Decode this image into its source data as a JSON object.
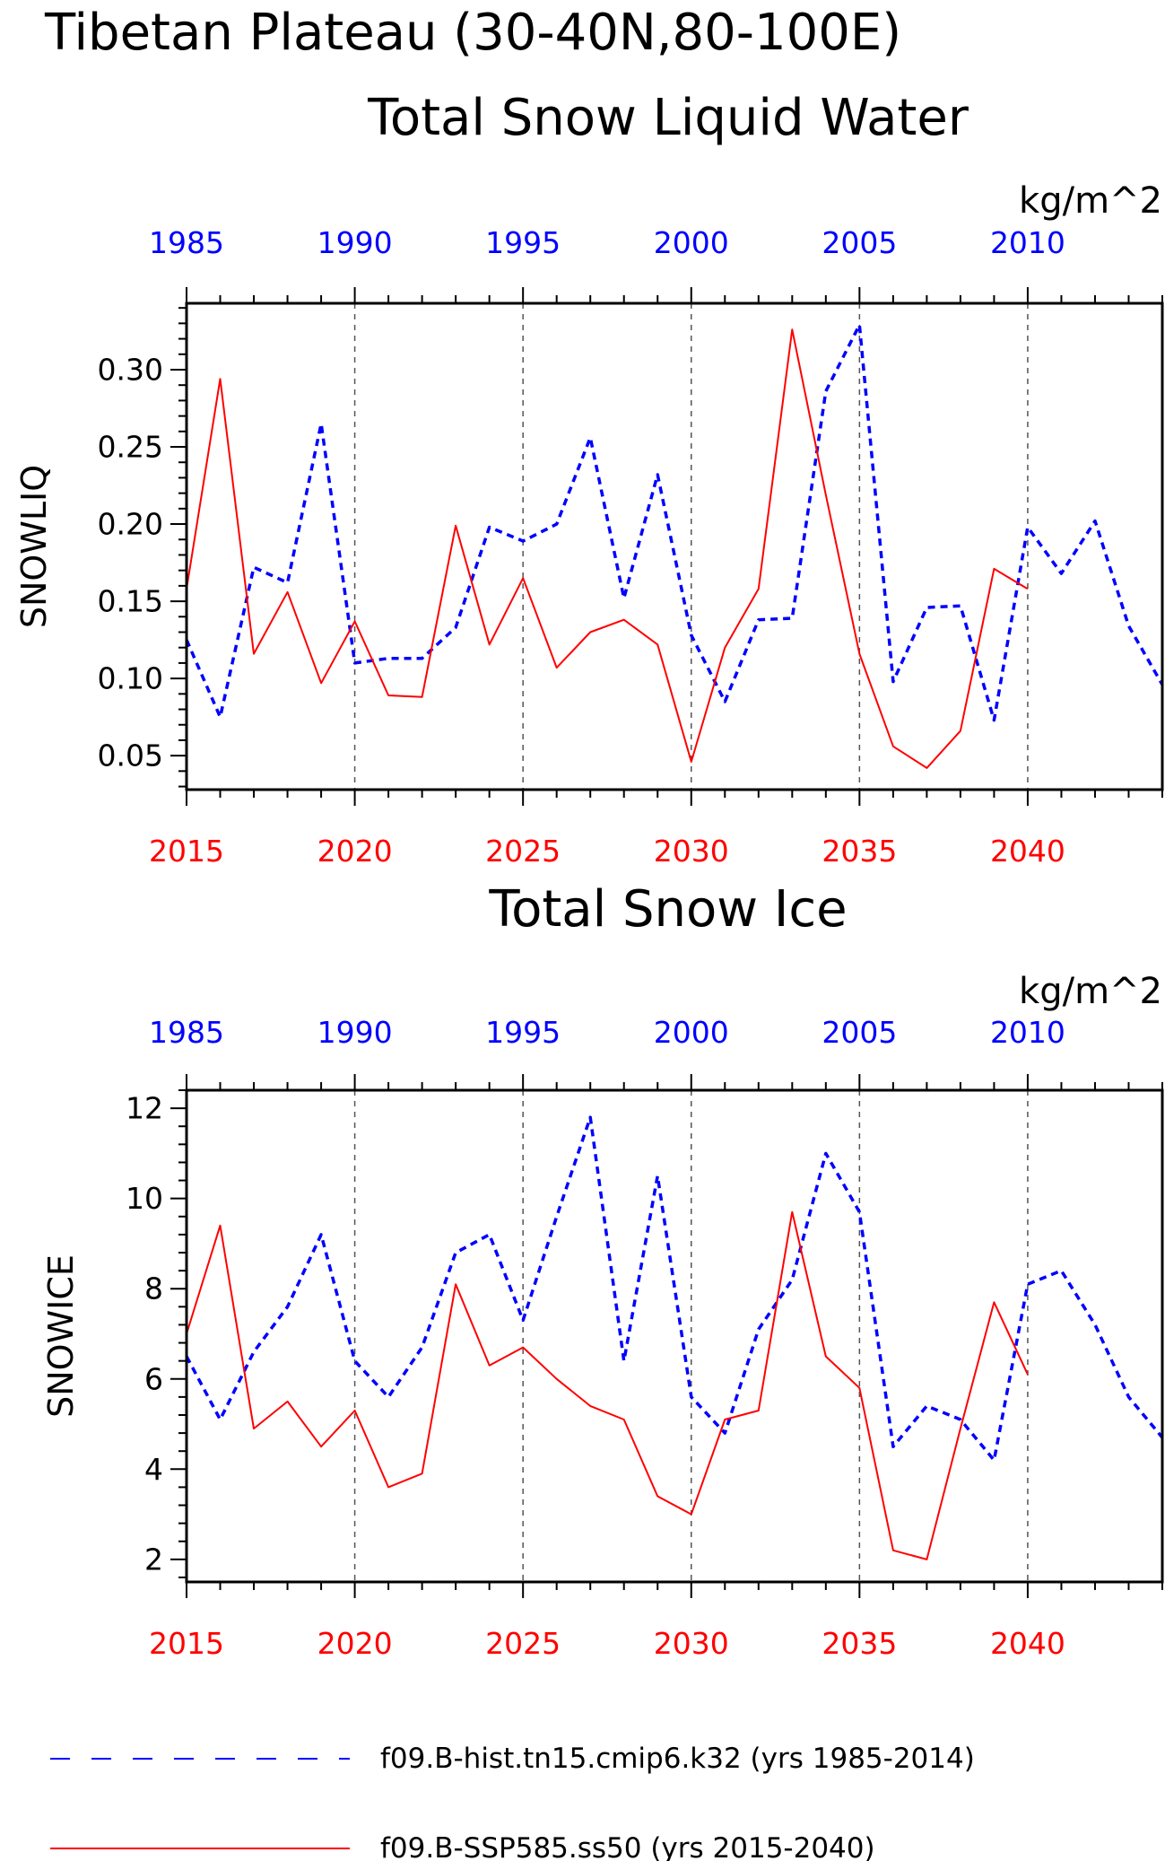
{
  "figure": {
    "title": "Tibetan Plateau (30-40N,80-100E)",
    "legend": [
      {
        "label": "f09.B-hist.tn15.cmip6.k32 (yrs 1985-2014)",
        "color": "#0000ff",
        "dash": "dashed"
      },
      {
        "label": "f09.B-SSP585.ss50 (yrs 2015-2040)",
        "color": "#ff0000",
        "dash": "solid"
      }
    ]
  },
  "chart_data": [
    {
      "type": "line",
      "title": "Total Snow Liquid Water",
      "units": "kg/m^2",
      "ylabel": "SNOWLIQ",
      "ylim": [
        0.028,
        0.343
      ],
      "yticks": [
        0.05,
        0.1,
        0.15,
        0.2,
        0.25,
        0.3
      ],
      "ytick_labels": [
        "0.05",
        "0.10",
        "0.15",
        "0.20",
        "0.25",
        "0.30"
      ],
      "bottom_axis": {
        "range": [
          2015,
          2044
        ],
        "ticks": [
          2015,
          2020,
          2025,
          2030,
          2035,
          2040
        ],
        "color": "#ff0000"
      },
      "top_axis": {
        "range": [
          1985,
          2014
        ],
        "ticks": [
          1985,
          1990,
          1995,
          2000,
          2005,
          2010
        ],
        "color": "#0000ff"
      },
      "series": [
        {
          "name": "f09.B-hist.tn15.cmip6.k32 (yrs 1985-2014)",
          "axis": "top",
          "color": "#0000ff",
          "dash": "dashed",
          "x": [
            1985,
            1986,
            1987,
            1988,
            1989,
            1990,
            1991,
            1992,
            1993,
            1994,
            1995,
            1996,
            1997,
            1998,
            1999,
            2000,
            2001,
            2002,
            2003,
            2004,
            2005,
            2006,
            2007,
            2008,
            2009,
            2010,
            2011,
            2012,
            2013,
            2014
          ],
          "values": [
            0.125,
            0.075,
            0.172,
            0.162,
            0.265,
            0.11,
            0.113,
            0.113,
            0.133,
            0.198,
            0.189,
            0.2,
            0.256,
            0.152,
            0.232,
            0.128,
            0.085,
            0.138,
            0.139,
            0.286,
            0.329,
            0.098,
            0.146,
            0.147,
            0.073,
            0.198,
            0.168,
            0.202,
            0.134,
            0.096
          ]
        },
        {
          "name": "f09.B-SSP585.ss50 (yrs 2015-2040)",
          "axis": "bottom",
          "color": "#ff0000",
          "dash": "solid",
          "x": [
            2015,
            2016,
            2017,
            2018,
            2019,
            2020,
            2021,
            2022,
            2023,
            2024,
            2025,
            2026,
            2027,
            2028,
            2029,
            2030,
            2031,
            2032,
            2033,
            2034,
            2035,
            2036,
            2037,
            2038,
            2039,
            2040
          ],
          "values": [
            0.158,
            0.294,
            0.116,
            0.156,
            0.097,
            0.137,
            0.089,
            0.088,
            0.199,
            0.122,
            0.165,
            0.107,
            0.13,
            0.138,
            0.122,
            0.046,
            0.12,
            0.158,
            0.326,
            0.219,
            0.116,
            0.056,
            0.042,
            0.066,
            0.171,
            0.158
          ]
        }
      ]
    },
    {
      "type": "line",
      "title": "Total Snow Ice",
      "units": "kg/m^2",
      "ylabel": "SNOWICE",
      "ylim": [
        1.5,
        12.4
      ],
      "yticks": [
        2,
        4,
        6,
        8,
        10,
        12
      ],
      "ytick_labels": [
        "2",
        "4",
        "6",
        "8",
        "10",
        "12"
      ],
      "bottom_axis": {
        "range": [
          2015,
          2044
        ],
        "ticks": [
          2015,
          2020,
          2025,
          2030,
          2035,
          2040
        ],
        "color": "#ff0000"
      },
      "top_axis": {
        "range": [
          1985,
          2014
        ],
        "ticks": [
          1985,
          1990,
          1995,
          2000,
          2005,
          2010
        ],
        "color": "#0000ff"
      },
      "series": [
        {
          "name": "f09.B-hist.tn15.cmip6.k32 (yrs 1985-2014)",
          "axis": "top",
          "color": "#0000ff",
          "dash": "dashed",
          "x": [
            1985,
            1986,
            1987,
            1988,
            1989,
            1990,
            1991,
            1992,
            1993,
            1994,
            1995,
            1996,
            1997,
            1998,
            1999,
            2000,
            2001,
            2002,
            2003,
            2004,
            2005,
            2006,
            2007,
            2008,
            2009,
            2010,
            2011,
            2012,
            2013,
            2014
          ],
          "values": [
            6.5,
            5.1,
            6.6,
            7.6,
            9.2,
            6.4,
            5.6,
            6.7,
            8.8,
            9.2,
            7.3,
            9.6,
            11.8,
            6.4,
            10.5,
            5.6,
            4.8,
            7.1,
            8.2,
            11.0,
            9.7,
            4.5,
            5.4,
            5.1,
            4.2,
            8.1,
            8.4,
            7.2,
            5.6,
            4.7
          ]
        },
        {
          "name": "f09.B-SSP585.ss50 (yrs 2015-2040)",
          "axis": "bottom",
          "color": "#ff0000",
          "dash": "solid",
          "x": [
            2015,
            2016,
            2017,
            2018,
            2019,
            2020,
            2021,
            2022,
            2023,
            2024,
            2025,
            2026,
            2027,
            2028,
            2029,
            2030,
            2031,
            2032,
            2033,
            2034,
            2035,
            2036,
            2037,
            2038,
            2039,
            2040
          ],
          "values": [
            7.0,
            9.4,
            4.9,
            5.5,
            4.5,
            5.3,
            3.6,
            3.9,
            8.1,
            6.3,
            6.7,
            6.0,
            5.4,
            5.1,
            3.4,
            3.0,
            5.1,
            5.3,
            9.7,
            6.5,
            5.8,
            2.2,
            2.0,
            4.9,
            7.7,
            6.1
          ]
        }
      ]
    }
  ]
}
